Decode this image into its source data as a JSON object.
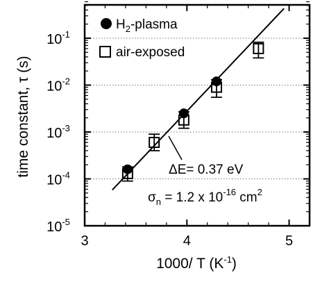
{
  "chart_data": {
    "type": "scatter",
    "xlabel": "1000/ T (K",
    "xlabel_sup": "-1",
    "xlabel_end": ")",
    "ylabel": "time constant, τ (s)",
    "xlim": [
      3,
      5.2
    ],
    "ylim_log10": [
      -5,
      0
    ],
    "log_y": true,
    "grid": "dotted horizontal at decades",
    "x_ticks": [
      {
        "value": 3,
        "label": "3"
      },
      {
        "value": 4,
        "label": "4"
      },
      {
        "value": 5,
        "label": "5"
      }
    ],
    "y_ticks": [
      {
        "exp": -1,
        "base": "10",
        "sup": "-1"
      },
      {
        "exp": -2,
        "base": "10",
        "sup": "-2"
      },
      {
        "exp": -3,
        "base": "10",
        "sup": "-3"
      },
      {
        "exp": -4,
        "base": "10",
        "sup": "-4"
      },
      {
        "exp": -5,
        "base": "10",
        "sup": "-5"
      }
    ],
    "legend_position": "top-left",
    "series": [
      {
        "name": "H₂-plasma",
        "name_parts": [
          "H",
          "2",
          "-plasma"
        ],
        "marker": "filled-circle",
        "points": [
          {
            "x": 3.42,
            "y": 0.00016
          },
          {
            "x": 3.97,
            "y": 0.0025
          },
          {
            "x": 4.29,
            "y": 0.012
          }
        ]
      },
      {
        "name": "air-exposed",
        "marker": "open-square-errorbar",
        "points": [
          {
            "x": 3.42,
            "y": 0.00013,
            "ylo": 9e-05,
            "yhi": 0.00018
          },
          {
            "x": 3.68,
            "y": 0.0006,
            "ylo": 0.0004,
            "yhi": 0.0009
          },
          {
            "x": 3.97,
            "y": 0.0018,
            "ylo": 0.0012,
            "yhi": 0.0027
          },
          {
            "x": 4.29,
            "y": 0.009,
            "ylo": 0.0055,
            "yhi": 0.013
          },
          {
            "x": 4.7,
            "y": 0.06,
            "ylo": 0.038,
            "yhi": 0.082
          }
        ]
      }
    ],
    "fit_line": {
      "x_start": 3.27,
      "y_start": 5.8e-05,
      "x_end": 4.95,
      "y_end": 0.43
    },
    "annotations": {
      "delta_e": "ΔE= 0.37 eV",
      "sigma_prefix": "σ",
      "sigma_sub": "n",
      "sigma_mid": " = 1.2 x 10",
      "sigma_sup": "-16",
      "sigma_unit": " cm",
      "sigma_unit_sup": "2"
    }
  }
}
